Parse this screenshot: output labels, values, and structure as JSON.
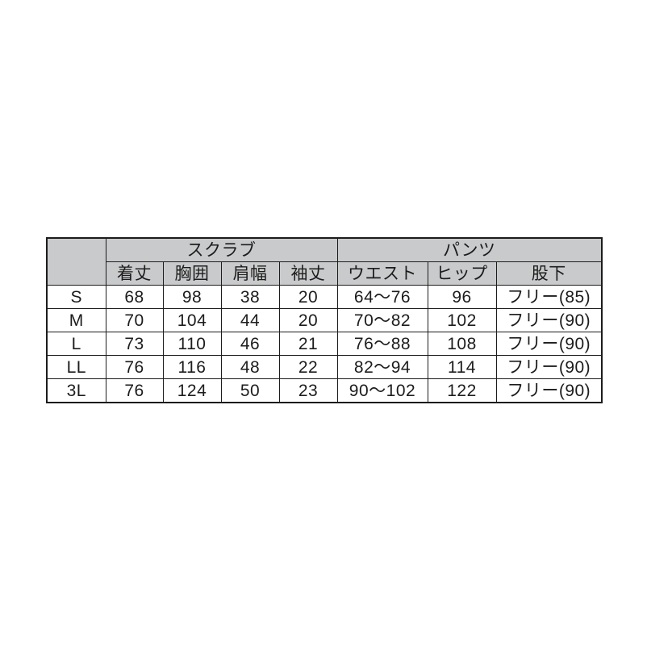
{
  "colors": {
    "page_bg": "#ffffff",
    "header_bg": "#c9cacb",
    "border": "#1c1c1c",
    "text": "#1c1c1c"
  },
  "chart_data": {
    "type": "table",
    "title": "",
    "corner_label": "",
    "column_groups": [
      {
        "label": "スクラブ",
        "span": 4
      },
      {
        "label": "パンツ",
        "span": 3
      }
    ],
    "columns": [
      "着丈",
      "胸囲",
      "肩幅",
      "袖丈",
      "ウエスト",
      "ヒップ",
      "股下"
    ],
    "row_labels": [
      "S",
      "M",
      "L",
      "LL",
      "3L"
    ],
    "rows": [
      [
        "68",
        "98",
        "38",
        "20",
        "64〜76",
        "96",
        "フリー(85)"
      ],
      [
        "70",
        "104",
        "44",
        "20",
        "70〜82",
        "102",
        "フリー(90)"
      ],
      [
        "73",
        "110",
        "46",
        "21",
        "76〜88",
        "108",
        "フリー(90)"
      ],
      [
        "76",
        "116",
        "48",
        "22",
        "82〜94",
        "114",
        "フリー(90)"
      ],
      [
        "76",
        "124",
        "50",
        "23",
        "90〜102",
        "122",
        "フリー(90)"
      ]
    ]
  }
}
